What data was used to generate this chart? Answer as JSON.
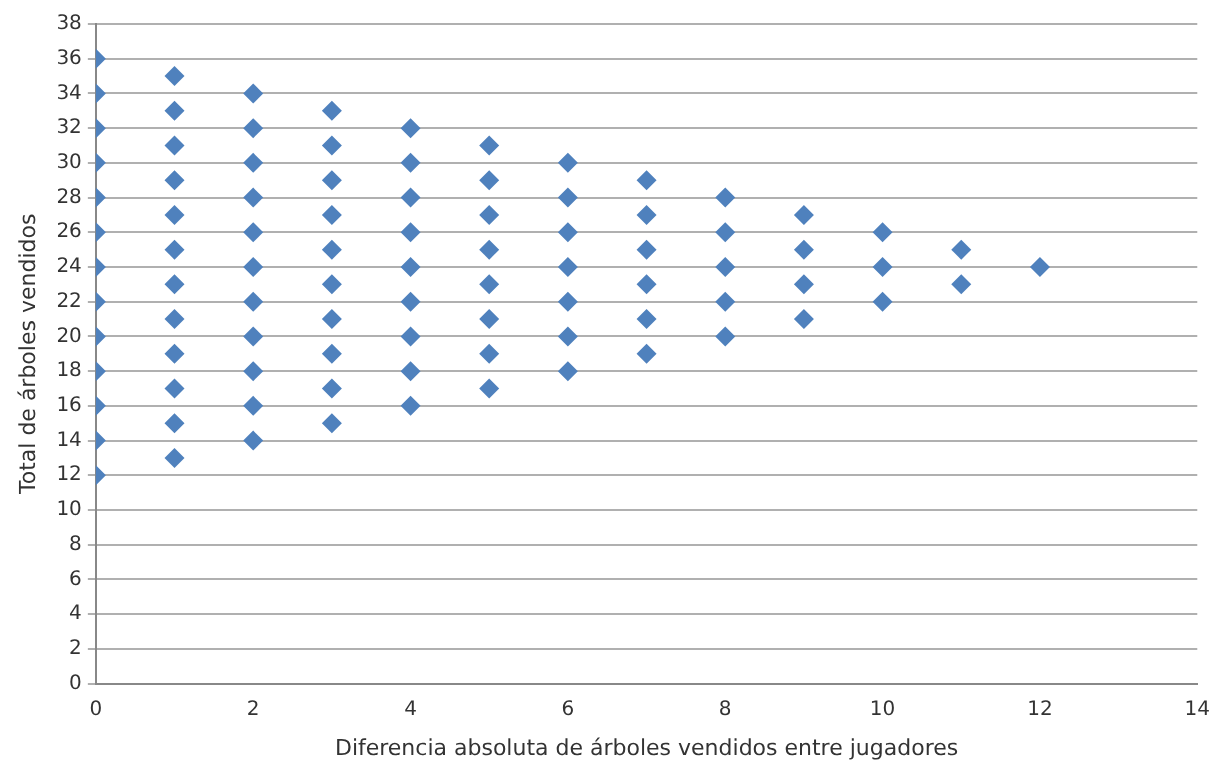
{
  "chart_data": {
    "type": "scatter",
    "xlabel": "Diferencia absoluta de árboles vendidos entre jugadores",
    "ylabel": "Total de árboles vendidos",
    "x": [
      0,
      0,
      0,
      0,
      0,
      0,
      0,
      0,
      0,
      0,
      0,
      0,
      0,
      1,
      1,
      1,
      1,
      1,
      1,
      1,
      1,
      1,
      1,
      1,
      1,
      2,
      2,
      2,
      2,
      2,
      2,
      2,
      2,
      2,
      2,
      2,
      3,
      3,
      3,
      3,
      3,
      3,
      3,
      3,
      3,
      3,
      4,
      4,
      4,
      4,
      4,
      4,
      4,
      4,
      4,
      5,
      5,
      5,
      5,
      5,
      5,
      5,
      5,
      6,
      6,
      6,
      6,
      6,
      6,
      6,
      7,
      7,
      7,
      7,
      7,
      7,
      8,
      8,
      8,
      8,
      8,
      9,
      9,
      9,
      9,
      10,
      10,
      10,
      11,
      11,
      12
    ],
    "values": [
      12,
      14,
      16,
      18,
      20,
      22,
      24,
      26,
      28,
      30,
      32,
      34,
      36,
      13,
      15,
      17,
      19,
      21,
      23,
      25,
      27,
      29,
      31,
      33,
      35,
      14,
      16,
      18,
      20,
      22,
      24,
      26,
      28,
      30,
      32,
      34,
      15,
      17,
      19,
      21,
      23,
      25,
      27,
      29,
      31,
      33,
      16,
      18,
      20,
      22,
      24,
      26,
      28,
      30,
      32,
      17,
      19,
      21,
      23,
      25,
      27,
      29,
      31,
      18,
      20,
      22,
      24,
      26,
      28,
      30,
      19,
      21,
      23,
      25,
      27,
      29,
      20,
      22,
      24,
      26,
      28,
      21,
      23,
      25,
      27,
      22,
      24,
      26,
      23,
      25,
      24
    ],
    "color": "#4f81bd",
    "marker": "diamond",
    "grid": "y",
    "legend": false,
    "xlim": [
      0,
      14
    ],
    "xticks": [
      0,
      2,
      4,
      6,
      8,
      10,
      12,
      14
    ],
    "ylim": [
      0,
      38
    ],
    "yticks": [
      0,
      2,
      4,
      6,
      8,
      10,
      12,
      14,
      16,
      18,
      20,
      22,
      24,
      26,
      28,
      30,
      32,
      34,
      36,
      38
    ]
  }
}
